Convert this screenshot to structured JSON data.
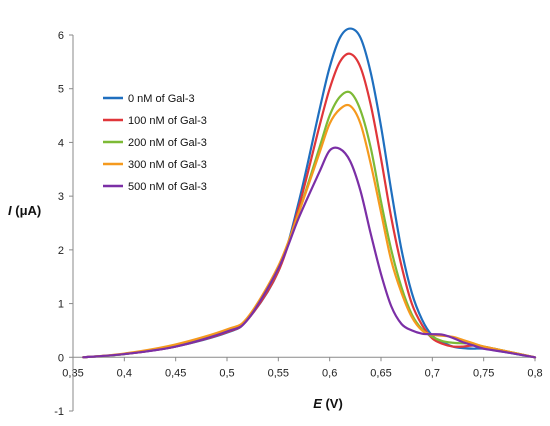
{
  "chart_data": {
    "type": "line",
    "xlabel_symbol": "E",
    "xlabel_unit": " (V)",
    "ylabel_symbol": "I",
    "ylabel_unit": " (μA)",
    "xlim": [
      0.35,
      0.8
    ],
    "ylim": [
      -1,
      6
    ],
    "grid": false,
    "legend_placement": "top-left",
    "x_ticks": [
      0.35,
      0.4,
      0.45,
      0.5,
      0.55,
      0.6,
      0.65,
      0.7,
      0.75,
      0.8
    ],
    "x_tick_labels": [
      "0,35",
      "0,4",
      "0,45",
      "0,5",
      "0,55",
      "0,6",
      "0,65",
      "0,7",
      "0,75",
      "0,8"
    ],
    "y_ticks": [
      -1,
      0,
      1,
      2,
      3,
      4,
      5,
      6
    ],
    "y_tick_labels": [
      "-1",
      "0",
      "1",
      "2",
      "3",
      "4",
      "5",
      "6"
    ],
    "x": [
      0.36,
      0.4,
      0.45,
      0.5,
      0.52,
      0.55,
      0.57,
      0.59,
      0.6,
      0.61,
      0.62,
      0.63,
      0.64,
      0.65,
      0.66,
      0.67,
      0.68,
      0.69,
      0.7,
      0.71,
      0.72,
      0.73,
      0.74,
      0.75,
      0.77,
      0.8
    ],
    "series": [
      {
        "name": "0 nM of Gal-3",
        "color": "#1F6FBF",
        "values": [
          0.0,
          0.06,
          0.2,
          0.46,
          0.7,
          1.6,
          2.9,
          4.6,
          5.4,
          5.95,
          6.12,
          5.95,
          5.3,
          4.3,
          3.1,
          2.0,
          1.2,
          0.7,
          0.4,
          0.28,
          0.2,
          0.17,
          0.16,
          0.16,
          0.1,
          0.0
        ]
      },
      {
        "name": "100 nM of Gal-3",
        "color": "#E0363A",
        "values": [
          0.0,
          0.06,
          0.2,
          0.47,
          0.7,
          1.6,
          2.8,
          4.3,
          5.0,
          5.5,
          5.65,
          5.4,
          4.7,
          3.7,
          2.6,
          1.7,
          1.0,
          0.6,
          0.35,
          0.25,
          0.2,
          0.2,
          0.22,
          0.2,
          0.12,
          0.0
        ]
      },
      {
        "name": "200 nM of Gal-3",
        "color": "#7DBA36",
        "values": [
          0.0,
          0.06,
          0.22,
          0.5,
          0.72,
          1.65,
          2.7,
          3.9,
          4.5,
          4.85,
          4.93,
          4.6,
          3.9,
          2.9,
          2.0,
          1.3,
          0.8,
          0.52,
          0.38,
          0.3,
          0.27,
          0.26,
          0.25,
          0.2,
          0.12,
          0.0
        ]
      },
      {
        "name": "300 nM of Gal-3",
        "color": "#F59A1E",
        "values": [
          0.0,
          0.07,
          0.24,
          0.52,
          0.74,
          1.7,
          2.7,
          3.8,
          4.35,
          4.62,
          4.68,
          4.35,
          3.6,
          2.7,
          1.8,
          1.2,
          0.75,
          0.5,
          0.42,
          0.4,
          0.38,
          0.32,
          0.26,
          0.2,
          0.12,
          0.0
        ]
      },
      {
        "name": "500 nM of Gal-3",
        "color": "#7B2FA6",
        "values": [
          0.0,
          0.06,
          0.2,
          0.48,
          0.7,
          1.65,
          2.6,
          3.45,
          3.85,
          3.88,
          3.65,
          3.1,
          2.3,
          1.55,
          0.95,
          0.62,
          0.5,
          0.44,
          0.43,
          0.42,
          0.36,
          0.28,
          0.22,
          0.16,
          0.1,
          0.0
        ]
      }
    ]
  }
}
